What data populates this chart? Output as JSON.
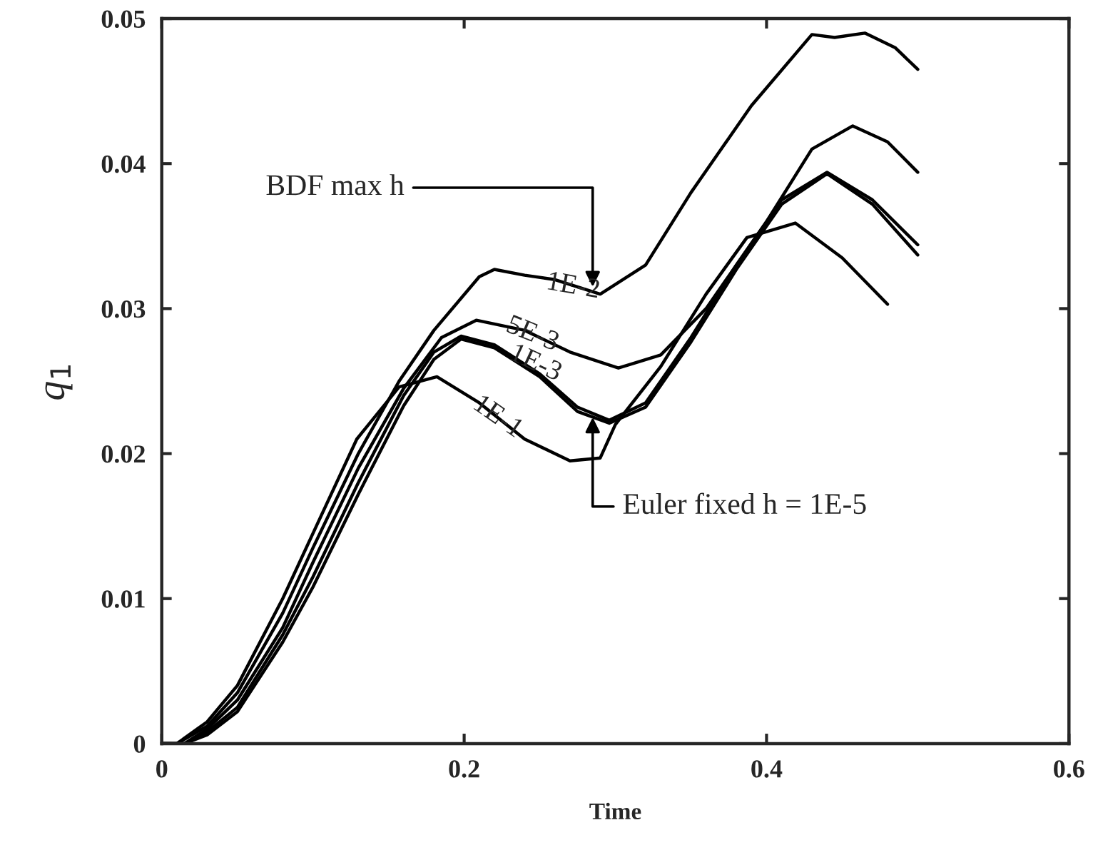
{
  "chart_data": {
    "type": "line",
    "xlabel": "Time",
    "ylabel": "q$_{1}$",
    "xlim": [
      0,
      0.6
    ],
    "ylim": [
      0,
      0.05
    ],
    "xticks": [
      0,
      0.2,
      0.4,
      0.6
    ],
    "yticks": [
      0,
      0.01,
      0.02,
      0.03,
      0.04,
      0.05
    ],
    "grid": false,
    "legend": false,
    "marker": "none",
    "line_style": "solid",
    "series": [
      {
        "color": "#000000",
        "x": [
          0,
          0.01,
          0.03,
          0.05,
          0.08,
          0.1,
          0.129,
          0.157,
          0.182,
          0.21,
          0.24,
          0.27,
          0.29,
          0.3,
          0.33,
          0.36,
          0.387,
          0.419,
          0.45,
          0.48
        ],
        "values": [
          0,
          0,
          0.0015,
          0.004,
          0.01,
          0.0145,
          0.021,
          0.0246,
          0.0253,
          0.0235,
          0.021,
          0.0195,
          0.0197,
          0.022,
          0.026,
          0.031,
          0.0349,
          0.0359,
          0.0335,
          0.0303
        ]
      },
      {
        "color": "#000000",
        "x": [
          0,
          0.01,
          0.03,
          0.05,
          0.08,
          0.1,
          0.13,
          0.157,
          0.18,
          0.21,
          0.22,
          0.24,
          0.26,
          0.29,
          0.32,
          0.35,
          0.39,
          0.43,
          0.445,
          0.465,
          0.485,
          0.5
        ],
        "values": [
          0,
          0,
          0.0012,
          0.0035,
          0.009,
          0.0135,
          0.02,
          0.025,
          0.0285,
          0.0322,
          0.0327,
          0.0323,
          0.032,
          0.031,
          0.033,
          0.038,
          0.044,
          0.0489,
          0.0487,
          0.049,
          0.048,
          0.0465
        ]
      },
      {
        "color": "#000000",
        "x": [
          0,
          0.015,
          0.03,
          0.05,
          0.08,
          0.1,
          0.13,
          0.16,
          0.185,
          0.208,
          0.24,
          0.27,
          0.302,
          0.33,
          0.36,
          0.4,
          0.43,
          0.457,
          0.48,
          0.5
        ],
        "values": [
          0,
          0,
          0.001,
          0.003,
          0.008,
          0.0125,
          0.019,
          0.0245,
          0.028,
          0.0292,
          0.0285,
          0.027,
          0.0259,
          0.0268,
          0.03,
          0.036,
          0.041,
          0.0426,
          0.0415,
          0.0394
        ]
      },
      {
        "color": "#000000",
        "x": [
          0,
          0.015,
          0.03,
          0.05,
          0.08,
          0.1,
          0.13,
          0.16,
          0.18,
          0.198,
          0.22,
          0.25,
          0.275,
          0.296,
          0.32,
          0.35,
          0.38,
          0.41,
          0.44,
          0.47,
          0.5
        ],
        "values": [
          0,
          0,
          0.0008,
          0.0025,
          0.0075,
          0.0115,
          0.018,
          0.024,
          0.027,
          0.0281,
          0.0275,
          0.0255,
          0.0232,
          0.0223,
          0.0235,
          0.028,
          0.033,
          0.0375,
          0.0394,
          0.0375,
          0.0344
        ]
      },
      {
        "color": "#000000",
        "x": [
          0,
          0.015,
          0.03,
          0.05,
          0.08,
          0.1,
          0.13,
          0.16,
          0.18,
          0.198,
          0.22,
          0.25,
          0.275,
          0.296,
          0.32,
          0.35,
          0.38,
          0.41,
          0.44,
          0.47,
          0.5
        ],
        "values": [
          0,
          0,
          0.0006,
          0.0022,
          0.007,
          0.0108,
          0.0172,
          0.0233,
          0.0265,
          0.0279,
          0.0273,
          0.0253,
          0.0229,
          0.0221,
          0.0232,
          0.0277,
          0.0327,
          0.0372,
          0.0393,
          0.0372,
          0.0337
        ]
      }
    ],
    "annotations": [
      {
        "text": "BDF max h",
        "x": 0.285,
        "y": 0.0315
      },
      {
        "text": "1E-2",
        "x": 0.272,
        "y": 0.0315
      },
      {
        "text": "5E-3",
        "x": 0.245,
        "y": 0.0282
      },
      {
        "text": "1E-3",
        "x": 0.247,
        "y": 0.0262
      },
      {
        "text": "1E-1",
        "x": 0.222,
        "y": 0.0225
      },
      {
        "text": "Euler fixed h = 1E-5",
        "x": 0.285,
        "y": 0.0225
      }
    ]
  }
}
